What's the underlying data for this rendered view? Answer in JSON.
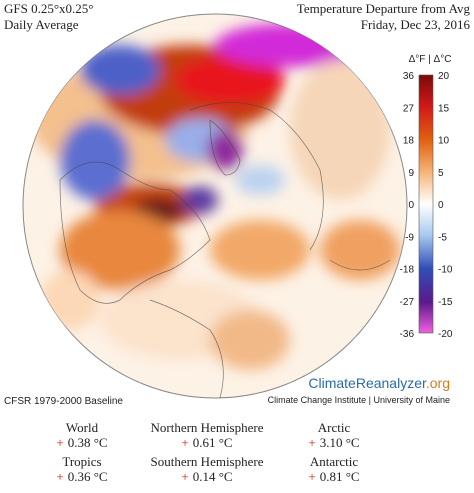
{
  "header": {
    "model": "GFS 0.25°x0.25°",
    "period": "Daily Average",
    "title": "Temperature Departure from Avg",
    "date": "Friday, Dec 23, 2016"
  },
  "colorbar": {
    "title": "Δ°F | Δ°C",
    "fahrenheit": [
      "36",
      "27",
      "18",
      "9",
      "0",
      "-9",
      "-18",
      "-27",
      "-36"
    ],
    "celsius": [
      "20",
      "15",
      "10",
      "5",
      "0",
      "-5",
      "-10",
      "-15",
      "-20"
    ]
  },
  "baseline": "CFSR 1979-2000 Baseline",
  "logo": {
    "name_a": "Climate",
    "name_b": "Reanalyzer",
    "name_c": ".org",
    "subtitle": "Climate Change Institute | University of Maine"
  },
  "stats": [
    {
      "region": "World",
      "sign": "+",
      "value": "0.38 °C"
    },
    {
      "region": "Northern Hemisphere",
      "sign": "+",
      "value": "0.61 °C"
    },
    {
      "region": "Arctic",
      "sign": "+",
      "value": "3.10 °C"
    },
    {
      "region": "Tropics",
      "sign": "+",
      "value": "0.36 °C"
    },
    {
      "region": "Southern Hemisphere",
      "sign": "+",
      "value": "0.14 °C"
    },
    {
      "region": "Antarctic",
      "sign": "+",
      "value": "0.81 °C"
    }
  ]
}
